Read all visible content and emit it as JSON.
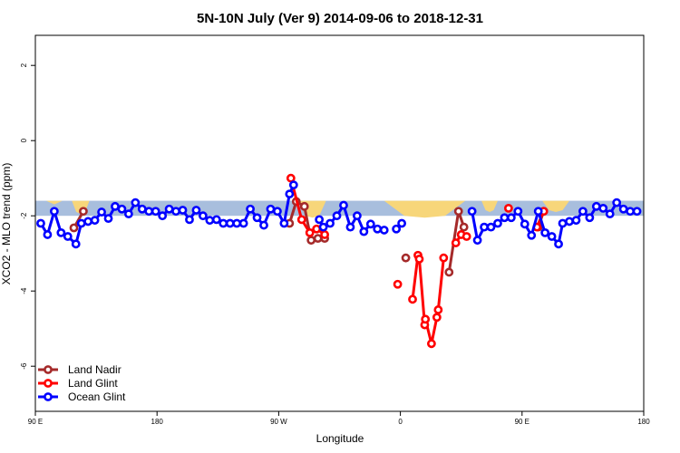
{
  "chart_data": {
    "type": "line",
    "title": "5N-10N July (Ver 9)   2014-09-06 to 2018-12-31",
    "xlabel": "Longitude",
    "ylabel": "XCO2 - MLO trend (ppm)",
    "xlim": [
      0,
      450
    ],
    "ylim": [
      -7.2,
      2.8
    ],
    "x_ticks": [
      {
        "value": 0,
        "label": "90 E"
      },
      {
        "value": 90,
        "label": "180"
      },
      {
        "value": 180,
        "label": "90 W"
      },
      {
        "value": 270,
        "label": "0"
      },
      {
        "value": 360,
        "label": "90 E"
      },
      {
        "value": 450,
        "label": "180"
      }
    ],
    "y_ticks": [
      {
        "value": 2,
        "label": "2"
      },
      {
        "value": 0,
        "label": "0"
      },
      {
        "value": -2,
        "label": "-2"
      },
      {
        "value": -4,
        "label": "-4"
      },
      {
        "value": -6,
        "label": "-6"
      }
    ],
    "legend_position": "bottom-left",
    "background_band": {
      "y_min": -2.0,
      "y_max": -1.6,
      "color": "#a8bedd"
    },
    "yellow_regions": [
      {
        "x_start": 8,
        "x_end": 20,
        "y_low": -1.65,
        "y_high": -1.6
      },
      {
        "x_start": 27,
        "x_end": 40,
        "y_low": -1.9,
        "y_high": -1.6
      },
      {
        "x_start": 195,
        "x_end": 215,
        "y_low": -2.0,
        "y_high": -1.6
      },
      {
        "x_start": 258,
        "x_end": 318,
        "y_low": -2.0,
        "y_high": -1.6
      },
      {
        "x_start": 330,
        "x_end": 342,
        "y_low": -1.85,
        "y_high": -1.6
      },
      {
        "x_start": 375,
        "x_end": 395,
        "y_low": -1.85,
        "y_high": -1.6
      }
    ],
    "series": [
      {
        "name": "Land Nadir",
        "color": "#a52a2a",
        "segments": [
          [
            [
              28.5,
              -2.32
            ],
            [
              35.5,
              -1.88
            ]
          ],
          [
            [
              188,
              -2.2
            ],
            [
              193,
              -1.62
            ],
            [
              199,
              -1.75
            ],
            [
              204,
              -2.65
            ],
            [
              209,
              -2.6
            ],
            [
              214,
              -2.6
            ]
          ],
          [
            [
              274,
              -3.12
            ]
          ],
          [
            [
              306,
              -3.5
            ],
            [
              313,
              -1.88
            ],
            [
              317,
              -2.3
            ]
          ],
          [
            [
              372,
              -2.3
            ],
            [
              376,
              -1.88
            ]
          ]
        ]
      },
      {
        "name": "Land Glint",
        "color": "#ff0000",
        "segments": [
          [
            [
              189,
              -1.0
            ],
            [
              197,
              -2.1
            ],
            [
              203,
              -2.45
            ],
            [
              208,
              -2.35
            ],
            [
              214,
              -2.5
            ]
          ],
          [
            [
              268,
              -3.82
            ]
          ],
          [
            [
              279,
              -4.22
            ],
            [
              283,
              -3.05
            ],
            [
              284,
              -3.15
            ],
            [
              288,
              -4.9
            ],
            [
              288.5,
              -4.75
            ],
            [
              293,
              -5.4
            ],
            [
              297,
              -4.7
            ],
            [
              298,
              -4.5
            ],
            [
              302,
              -3.12
            ]
          ],
          [
            [
              311,
              -2.72
            ],
            [
              315,
              -2.5
            ],
            [
              319,
              -2.55
            ]
          ],
          [
            [
              350,
              -1.8
            ]
          ],
          [
            [
              371,
              -2.3
            ],
            [
              376,
              -1.88
            ]
          ]
        ]
      },
      {
        "name": "Ocean Glint",
        "color": "#0000ff",
        "segments": [
          [
            [
              4,
              -2.2
            ],
            [
              9,
              -2.5
            ],
            [
              14,
              -1.88
            ],
            [
              19,
              -2.45
            ],
            [
              24,
              -2.55
            ],
            [
              30,
              -2.75
            ],
            [
              34,
              -2.2
            ],
            [
              39,
              -2.15
            ],
            [
              44,
              -2.12
            ],
            [
              49,
              -1.9
            ],
            [
              54,
              -2.07
            ],
            [
              59,
              -1.75
            ],
            [
              64,
              -1.82
            ],
            [
              69,
              -1.95
            ],
            [
              74,
              -1.65
            ],
            [
              79,
              -1.82
            ],
            [
              84,
              -1.88
            ],
            [
              89,
              -1.88
            ],
            [
              94,
              -2.0
            ],
            [
              99,
              -1.82
            ],
            [
              104,
              -1.88
            ],
            [
              109,
              -1.85
            ],
            [
              114,
              -2.1
            ],
            [
              119,
              -1.85
            ],
            [
              124,
              -2.0
            ],
            [
              129,
              -2.12
            ],
            [
              134,
              -2.1
            ],
            [
              139,
              -2.2
            ],
            [
              144,
              -2.2
            ],
            [
              149,
              -2.2
            ],
            [
              154,
              -2.2
            ],
            [
              159,
              -1.82
            ],
            [
              164,
              -2.05
            ],
            [
              169,
              -2.25
            ],
            [
              174,
              -1.82
            ],
            [
              179,
              -1.88
            ],
            [
              184,
              -2.2
            ],
            [
              188,
              -1.42
            ],
            [
              191,
              -1.18
            ]
          ],
          [
            [
              210,
              -2.1
            ],
            [
              213,
              -2.3
            ],
            [
              218,
              -2.2
            ],
            [
              223,
              -2.0
            ],
            [
              228,
              -1.72
            ],
            [
              233,
              -2.3
            ],
            [
              238,
              -2.0
            ],
            [
              243,
              -2.42
            ],
            [
              248,
              -2.22
            ],
            [
              253,
              -2.35
            ],
            [
              258,
              -2.38
            ]
          ],
          [
            [
              267,
              -2.35
            ],
            [
              271,
              -2.2
            ]
          ],
          [
            [
              323,
              -1.88
            ],
            [
              327,
              -2.65
            ],
            [
              332,
              -2.3
            ],
            [
              337,
              -2.3
            ],
            [
              342,
              -2.2
            ],
            [
              347,
              -2.05
            ],
            [
              352,
              -2.05
            ],
            [
              357,
              -1.88
            ],
            [
              362,
              -2.22
            ],
            [
              367,
              -2.52
            ],
            [
              372,
              -1.88
            ],
            [
              377,
              -2.45
            ],
            [
              382,
              -2.55
            ],
            [
              387,
              -2.75
            ],
            [
              390,
              -2.2
            ],
            [
              395,
              -2.15
            ],
            [
              400,
              -2.12
            ],
            [
              405,
              -1.88
            ],
            [
              410,
              -2.05
            ],
            [
              415,
              -1.75
            ],
            [
              420,
              -1.8
            ],
            [
              425,
              -1.95
            ],
            [
              430,
              -1.65
            ],
            [
              435,
              -1.82
            ],
            [
              440,
              -1.88
            ],
            [
              445,
              -1.88
            ]
          ]
        ]
      }
    ]
  }
}
